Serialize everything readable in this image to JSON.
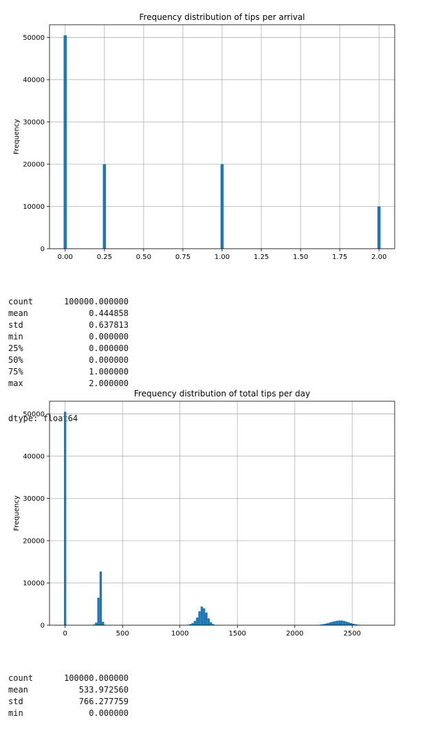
{
  "chart_data": [
    {
      "type": "bar",
      "title": "Frequency distribution of tips per arrival",
      "xlabel": "",
      "ylabel": "Frequency",
      "xlim": [
        -0.1,
        2.1
      ],
      "ylim": [
        0,
        53000
      ],
      "xticks": [
        0.0,
        0.25,
        0.5,
        0.75,
        1.0,
        1.25,
        1.5,
        1.75,
        2.0
      ],
      "xtick_labels": [
        "0.00",
        "0.25",
        "0.50",
        "0.75",
        "1.00",
        "1.25",
        "1.50",
        "1.75",
        "2.00"
      ],
      "yticks": [
        0,
        10000,
        20000,
        30000,
        40000,
        50000
      ],
      "ytick_labels": [
        "0",
        "10000",
        "20000",
        "30000",
        "40000",
        "50000"
      ],
      "grid": true,
      "bar_width": 0.02,
      "bars": [
        {
          "x": 0.0,
          "value": 50500
        },
        {
          "x": 0.25,
          "value": 20000
        },
        {
          "x": 1.0,
          "value": 20000
        },
        {
          "x": 2.0,
          "value": 10000
        }
      ]
    },
    {
      "type": "bar",
      "title": "Frequency distribution of total tips per day",
      "xlabel": "",
      "ylabel": "Frequency",
      "xlim": [
        -136,
        2870
      ],
      "ylim": [
        0,
        53000
      ],
      "xticks": [
        0,
        500,
        1000,
        1500,
        2000,
        2500
      ],
      "xtick_labels": [
        "0",
        "500",
        "1000",
        "1500",
        "2000",
        "2500"
      ],
      "yticks": [
        0,
        10000,
        20000,
        30000,
        40000,
        50000
      ],
      "ytick_labels": [
        "0",
        "10000",
        "20000",
        "30000",
        "40000",
        "50000"
      ],
      "grid": true,
      "bar_width": 20,
      "bars": [
        {
          "x": 0,
          "value": 50500
        },
        {
          "x": 250,
          "value": 150
        },
        {
          "x": 270,
          "value": 600
        },
        {
          "x": 290,
          "value": 6500
        },
        {
          "x": 310,
          "value": 12700
        },
        {
          "x": 330,
          "value": 800
        },
        {
          "x": 350,
          "value": 100
        },
        {
          "x": 1070,
          "value": 100
        },
        {
          "x": 1090,
          "value": 250
        },
        {
          "x": 1110,
          "value": 500
        },
        {
          "x": 1130,
          "value": 1000
        },
        {
          "x": 1150,
          "value": 1800
        },
        {
          "x": 1170,
          "value": 3300
        },
        {
          "x": 1190,
          "value": 4400
        },
        {
          "x": 1210,
          "value": 4000
        },
        {
          "x": 1230,
          "value": 3000
        },
        {
          "x": 1250,
          "value": 1600
        },
        {
          "x": 1270,
          "value": 700
        },
        {
          "x": 1290,
          "value": 250
        },
        {
          "x": 1310,
          "value": 80
        },
        {
          "x": 2210,
          "value": 80
        },
        {
          "x": 2230,
          "value": 150
        },
        {
          "x": 2250,
          "value": 250
        },
        {
          "x": 2270,
          "value": 380
        },
        {
          "x": 2290,
          "value": 520
        },
        {
          "x": 2310,
          "value": 680
        },
        {
          "x": 2330,
          "value": 820
        },
        {
          "x": 2350,
          "value": 950
        },
        {
          "x": 2370,
          "value": 1050
        },
        {
          "x": 2390,
          "value": 1100
        },
        {
          "x": 2410,
          "value": 1100
        },
        {
          "x": 2430,
          "value": 1000
        },
        {
          "x": 2450,
          "value": 850
        },
        {
          "x": 2470,
          "value": 680
        },
        {
          "x": 2490,
          "value": 500
        },
        {
          "x": 2510,
          "value": 350
        },
        {
          "x": 2530,
          "value": 220
        },
        {
          "x": 2550,
          "value": 120
        },
        {
          "x": 2570,
          "value": 60
        }
      ]
    }
  ],
  "stats1": [
    {
      "key": "count",
      "value": "100000.000000"
    },
    {
      "key": "mean",
      "value": "0.444858"
    },
    {
      "key": "std",
      "value": "0.637813"
    },
    {
      "key": "min",
      "value": "0.000000"
    },
    {
      "key": "25%",
      "value": "0.000000"
    },
    {
      "key": "50%",
      "value": "0.000000"
    },
    {
      "key": "75%",
      "value": "1.000000"
    },
    {
      "key": "max",
      "value": "2.000000"
    }
  ],
  "stats1_dtype": "dtype: float64",
  "stats2": [
    {
      "key": "count",
      "value": "100000.000000"
    },
    {
      "key": "mean",
      "value": "533.972560"
    },
    {
      "key": "std",
      "value": "766.277759"
    },
    {
      "key": "min",
      "value": "0.000000"
    }
  ],
  "colors": {
    "bar": "#1f77b4",
    "grid": "#b0b0b0",
    "axis": "#000000"
  }
}
